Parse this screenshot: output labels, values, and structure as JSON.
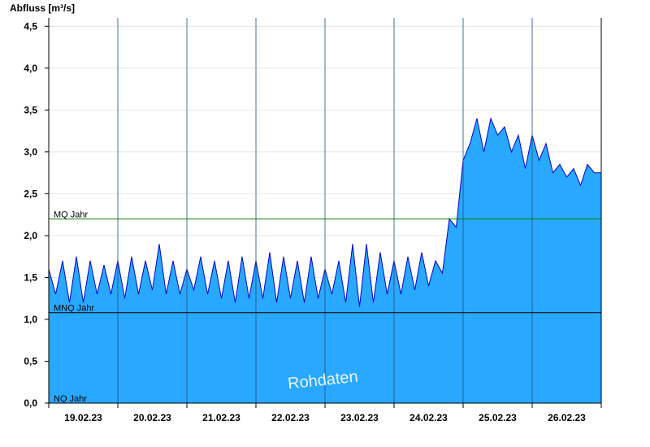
{
  "chart_data": {
    "type": "area",
    "ylabel": "Abfluss [m³/s]",
    "ylim": [
      0,
      4.6
    ],
    "yticks": [
      "0,0",
      "0,5",
      "1,0",
      "1,5",
      "2,0",
      "2,5",
      "3,0",
      "3,5",
      "4,0",
      "4,5"
    ],
    "ytick_values": [
      0,
      0.5,
      1.0,
      1.5,
      2.0,
      2.5,
      3.0,
      3.5,
      4.0,
      4.5
    ],
    "xlim": [
      0,
      8
    ],
    "x_unit": "days from 19.02.23 00:00",
    "xticks": [
      "19.02.23",
      "20.02.23",
      "21.02.23",
      "22.02.23",
      "23.02.23",
      "24.02.23",
      "25.02.23",
      "26.02.23"
    ],
    "grid": true,
    "fill_color": "#29a8ff",
    "line_color": "#0000cc",
    "reference_lines": [
      {
        "label": "MQ Jahr",
        "value": 2.2,
        "color": "#008000"
      },
      {
        "label": "MNQ Jahr",
        "value": 1.08,
        "color": "#000000"
      },
      {
        "label": "NQ Jahr",
        "value": 0.0,
        "color": "#000000"
      }
    ],
    "watermark": "Rohdaten",
    "series": [
      {
        "x": [
          0.0,
          0.1,
          0.2,
          0.3,
          0.4,
          0.5,
          0.6,
          0.7,
          0.8,
          0.9,
          1.0,
          1.1,
          1.2,
          1.3,
          1.4,
          1.5,
          1.6,
          1.7,
          1.8,
          1.9,
          2.0,
          2.1,
          2.2,
          2.3,
          2.4,
          2.5,
          2.6,
          2.7,
          2.8,
          2.9,
          3.0,
          3.1,
          3.2,
          3.3,
          3.4,
          3.5,
          3.6,
          3.7,
          3.8,
          3.9,
          4.0,
          4.1,
          4.2,
          4.3,
          4.4,
          4.5,
          4.6,
          4.7,
          4.8,
          4.9,
          5.0,
          5.1,
          5.2,
          5.3,
          5.4,
          5.5,
          5.6,
          5.7,
          5.8,
          5.9,
          6.0,
          6.1,
          6.2,
          6.3,
          6.4,
          6.5,
          6.6,
          6.7,
          6.8,
          6.9,
          7.0,
          7.1,
          7.2,
          7.3,
          7.4,
          7.5,
          7.6,
          7.7,
          7.8,
          7.9,
          8.0
        ],
        "y": [
          1.6,
          1.3,
          1.7,
          1.2,
          1.75,
          1.2,
          1.7,
          1.3,
          1.65,
          1.3,
          1.7,
          1.25,
          1.75,
          1.3,
          1.7,
          1.35,
          1.9,
          1.3,
          1.7,
          1.3,
          1.6,
          1.35,
          1.75,
          1.3,
          1.7,
          1.25,
          1.7,
          1.2,
          1.75,
          1.25,
          1.7,
          1.25,
          1.8,
          1.2,
          1.75,
          1.25,
          1.7,
          1.2,
          1.75,
          1.25,
          1.6,
          1.3,
          1.7,
          1.2,
          1.9,
          1.15,
          1.9,
          1.2,
          1.8,
          1.3,
          1.7,
          1.3,
          1.75,
          1.35,
          1.8,
          1.4,
          1.7,
          1.55,
          2.2,
          2.1,
          2.9,
          3.1,
          3.4,
          3.0,
          3.4,
          3.2,
          3.3,
          3.0,
          3.2,
          2.8,
          3.2,
          2.9,
          3.1,
          2.75,
          2.85,
          2.7,
          2.8,
          2.6,
          2.85,
          2.75,
          2.75
        ]
      }
    ]
  }
}
